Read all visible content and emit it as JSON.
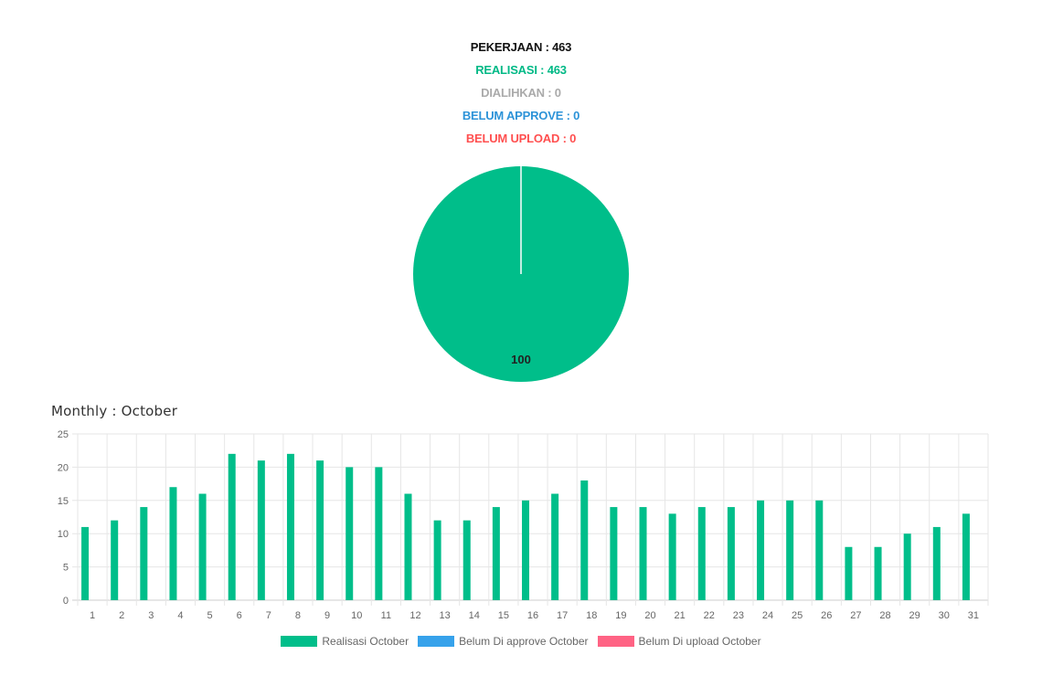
{
  "stats": {
    "pekerjaan": "PEKERJAAN : 463",
    "realisasi": "REALISASI : 463",
    "dialihkan": "DIALIHKAN : 0",
    "belum_approve": "BELUM APPROVE : 0",
    "belum_upload": "BELUM UPLOAD : 0"
  },
  "colors": {
    "realisasi": "#00be8a",
    "belum_approve": "#36a2eb",
    "belum_upload": "#ff6384"
  },
  "monthly_title": "Monthly : October",
  "chart_data": [
    {
      "type": "pie",
      "labels": [
        "Realisasi",
        "Dialihkan",
        "Belum Approve",
        "Belum Upload"
      ],
      "values": [
        100,
        0,
        0,
        0
      ],
      "data_labels": [
        "100"
      ]
    },
    {
      "type": "bar",
      "categories": [
        "1",
        "2",
        "3",
        "4",
        "5",
        "6",
        "7",
        "8",
        "9",
        "10",
        "11",
        "12",
        "13",
        "14",
        "15",
        "16",
        "17",
        "18",
        "19",
        "20",
        "21",
        "22",
        "23",
        "24",
        "25",
        "26",
        "27",
        "28",
        "29",
        "30",
        "31"
      ],
      "series": [
        {
          "name": "Realisasi October",
          "values": [
            11,
            12,
            14,
            17,
            16,
            22,
            21,
            22,
            21,
            20,
            20,
            16,
            12,
            12,
            14,
            15,
            16,
            18,
            14,
            14,
            13,
            14,
            14,
            15,
            15,
            15,
            8,
            8,
            10,
            11,
            13
          ]
        },
        {
          "name": "Belum Di approve October",
          "values": [
            0,
            0,
            0,
            0,
            0,
            0,
            0,
            0,
            0,
            0,
            0,
            0,
            0,
            0,
            0,
            0,
            0,
            0,
            0,
            0,
            0,
            0,
            0,
            0,
            0,
            0,
            0,
            0,
            0,
            0,
            0
          ]
        },
        {
          "name": "Belum Di upload October",
          "values": [
            0,
            0,
            0,
            0,
            0,
            0,
            0,
            0,
            0,
            0,
            0,
            0,
            0,
            0,
            0,
            0,
            0,
            0,
            0,
            0,
            0,
            0,
            0,
            0,
            0,
            0,
            0,
            0,
            0,
            0,
            0
          ]
        }
      ],
      "yticks": [
        "0",
        "5",
        "10",
        "15",
        "20",
        "25"
      ],
      "ylim": [
        0,
        25
      ],
      "grid": true,
      "legend": "bottom"
    }
  ]
}
